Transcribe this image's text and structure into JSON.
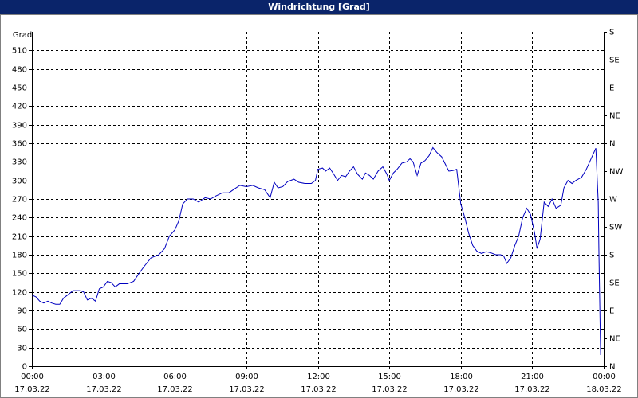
{
  "chart_data": {
    "type": "line",
    "title": "Windrichtung [Grad]",
    "ylabel": "Grad",
    "xlim": [
      0,
      24
    ],
    "xticks": [
      {
        "value": 0,
        "label": "00:00"
      },
      {
        "value": 3,
        "label": "03:00"
      },
      {
        "value": 6,
        "label": "06:00"
      },
      {
        "value": 9,
        "label": "09:00"
      },
      {
        "value": 12,
        "label": "12:00"
      },
      {
        "value": 15,
        "label": "15:00"
      },
      {
        "value": 18,
        "label": "18:00"
      },
      {
        "value": 21,
        "label": "21:00"
      },
      {
        "value": 24,
        "label": "00:00"
      }
    ],
    "xtick_dates": [
      "17.03.22",
      "17.03.22",
      "17.03.22",
      "17.03.22",
      "17.03.22",
      "17.03.22",
      "17.03.22",
      "17.03.22",
      "18.03.22"
    ],
    "ylim": [
      0,
      540
    ],
    "yticks": [
      0,
      30,
      60,
      90,
      120,
      150,
      180,
      210,
      240,
      270,
      300,
      330,
      360,
      390,
      420,
      450,
      480,
      510
    ],
    "y2lim": [
      0,
      540
    ],
    "y2ticks": [
      {
        "value": 0,
        "label": "N"
      },
      {
        "value": 45,
        "label": "NE"
      },
      {
        "value": 90,
        "label": "E"
      },
      {
        "value": 135,
        "label": "SE"
      },
      {
        "value": 180,
        "label": "S"
      },
      {
        "value": 225,
        "label": "SW"
      },
      {
        "value": 270,
        "label": "W"
      },
      {
        "value": 315,
        "label": "NW"
      },
      {
        "value": 360,
        "label": "N"
      },
      {
        "value": 405,
        "label": "NE"
      },
      {
        "value": 450,
        "label": "E"
      },
      {
        "value": 495,
        "label": "SE"
      },
      {
        "value": 540,
        "label": "S"
      }
    ],
    "grid": true,
    "color": "#0000c0",
    "x": [
      0,
      0.17,
      0.33,
      0.5,
      0.67,
      0.83,
      1,
      1.17,
      1.33,
      1.5,
      1.73,
      2,
      2.17,
      2.33,
      2.5,
      2.67,
      2.83,
      3,
      3.17,
      3.33,
      3.5,
      3.67,
      4,
      4.27,
      4.5,
      4.73,
      5,
      5.33,
      5.57,
      5.77,
      6,
      6.17,
      6.33,
      6.53,
      6.77,
      7,
      7.27,
      7.5,
      7.73,
      8,
      8.27,
      8.53,
      8.73,
      9,
      9.27,
      9.5,
      9.77,
      10,
      10.17,
      10.33,
      10.53,
      10.73,
      11,
      11.2,
      11.47,
      11.73,
      11.9,
      12,
      12.2,
      12.33,
      12.5,
      12.67,
      12.83,
      13,
      13.17,
      13.33,
      13.5,
      13.67,
      13.87,
      14,
      14.17,
      14.33,
      14.53,
      14.73,
      14.9,
      15,
      15.17,
      15.33,
      15.53,
      15.73,
      15.87,
      16,
      16.17,
      16.33,
      16.5,
      16.67,
      16.83,
      17,
      17.2,
      17.33,
      17.5,
      17.67,
      17.83,
      18,
      18.17,
      18.33,
      18.5,
      18.67,
      18.87,
      19.07,
      19.27,
      19.47,
      19.67,
      19.8,
      19.93,
      20.1,
      20.27,
      20.43,
      20.6,
      20.77,
      20.93,
      21.1,
      21.2,
      21.33,
      21.5,
      21.67,
      21.83,
      22,
      22.2,
      22.33,
      22.5,
      22.67,
      22.83,
      23.07,
      23.27,
      23.47,
      23.67,
      23.77,
      23.8,
      23.83,
      23.87
    ],
    "values": [
      115,
      112,
      105,
      102,
      105,
      102,
      100,
      100,
      110,
      115,
      122,
      122,
      120,
      107,
      110,
      105,
      125,
      128,
      137,
      135,
      128,
      133,
      133,
      137,
      150,
      162,
      175,
      180,
      190,
      210,
      220,
      235,
      262,
      270,
      270,
      265,
      272,
      270,
      275,
      280,
      280,
      287,
      292,
      290,
      292,
      288,
      285,
      272,
      297,
      288,
      290,
      298,
      302,
      297,
      295,
      295,
      300,
      318,
      320,
      315,
      320,
      310,
      300,
      308,
      306,
      315,
      322,
      310,
      302,
      312,
      308,
      302,
      315,
      322,
      310,
      300,
      312,
      318,
      328,
      330,
      335,
      330,
      308,
      328,
      332,
      340,
      353,
      345,
      338,
      328,
      315,
      316,
      318,
      262,
      240,
      215,
      195,
      186,
      182,
      185,
      183,
      180,
      180,
      178,
      166,
      175,
      195,
      210,
      240,
      255,
      245,
      215,
      190,
      205,
      265,
      258,
      270,
      255,
      260,
      288,
      300,
      295,
      300,
      305,
      318,
      335,
      352,
      265,
      180,
      110,
      18
    ]
  }
}
